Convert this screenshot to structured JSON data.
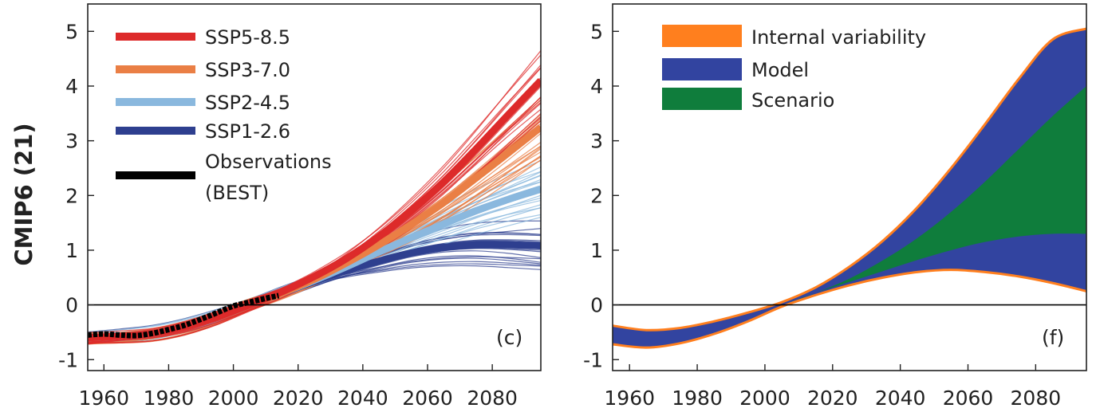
{
  "figure": {
    "row_label": "CMIP6 (21)"
  },
  "chart_data": [
    {
      "type": "line",
      "panel_label": "(c)",
      "xlim": [
        1955,
        2095
      ],
      "ylim": [
        -1.2,
        5.5
      ],
      "xticks": [
        1960,
        1980,
        2000,
        2020,
        2040,
        2060,
        2080
      ],
      "yticks": [
        -1,
        0,
        1,
        2,
        3,
        4,
        5
      ],
      "xlabel": "",
      "ylabel": "CMIP6 (21)",
      "zero_line": true,
      "legend": {
        "placement": "top-left",
        "entries": [
          {
            "label": "SSP5-8.5",
            "color": "#dd2a2a"
          },
          {
            "label": "SSP3-7.0",
            "color": "#ea7f45"
          },
          {
            "label": "SSP2-4.5",
            "color": "#8ab8de"
          },
          {
            "label": "SSP1-2.6",
            "color": "#2e3f8f"
          },
          {
            "label": "Observations",
            "label2": "(BEST)",
            "color": "#000000"
          }
        ]
      },
      "series": [
        {
          "name": "SSP5-8.5",
          "color": "#dd2a2a",
          "x": [
            1955,
            1965,
            1975,
            1985,
            1995,
            2005,
            2015,
            2025,
            2035,
            2045,
            2055,
            2065,
            2075,
            2085,
            2095
          ],
          "y": [
            -0.6,
            -0.57,
            -0.52,
            -0.4,
            -0.22,
            0.0,
            0.24,
            0.52,
            0.85,
            1.25,
            1.72,
            2.25,
            2.85,
            3.48,
            4.1
          ]
        },
        {
          "name": "SSP3-7.0",
          "color": "#ea7f45",
          "x": [
            1955,
            1965,
            1975,
            1985,
            1995,
            2005,
            2015,
            2025,
            2035,
            2045,
            2055,
            2065,
            2075,
            2085,
            2095
          ],
          "y": [
            -0.6,
            -0.57,
            -0.52,
            -0.4,
            -0.22,
            0.0,
            0.22,
            0.47,
            0.77,
            1.1,
            1.47,
            1.87,
            2.32,
            2.78,
            3.25
          ]
        },
        {
          "name": "SSP2-4.5",
          "color": "#8ab8de",
          "x": [
            1955,
            1965,
            1975,
            1985,
            1995,
            2005,
            2015,
            2025,
            2035,
            2045,
            2055,
            2065,
            2075,
            2085,
            2095
          ],
          "y": [
            -0.6,
            -0.57,
            -0.52,
            -0.4,
            -0.22,
            0.0,
            0.22,
            0.45,
            0.7,
            0.97,
            1.23,
            1.48,
            1.72,
            1.93,
            2.12
          ]
        },
        {
          "name": "SSP1-2.6",
          "color": "#2e3f8f",
          "x": [
            1955,
            1965,
            1975,
            1985,
            1995,
            2005,
            2015,
            2025,
            2035,
            2045,
            2055,
            2065,
            2075,
            2085,
            2095
          ],
          "y": [
            -0.6,
            -0.57,
            -0.52,
            -0.4,
            -0.22,
            0.0,
            0.22,
            0.43,
            0.63,
            0.8,
            0.95,
            1.05,
            1.1,
            1.1,
            1.08
          ]
        },
        {
          "name": "Observations",
          "color": "#000000",
          "x": [
            1955,
            1960,
            1965,
            1970,
            1975,
            1980,
            1985,
            1990,
            1995,
            2000,
            2005,
            2010,
            2014
          ],
          "y": [
            -0.55,
            -0.53,
            -0.55,
            -0.56,
            -0.52,
            -0.45,
            -0.37,
            -0.26,
            -0.14,
            -0.02,
            0.05,
            0.12,
            0.17
          ]
        }
      ]
    },
    {
      "type": "area",
      "panel_label": "(f)",
      "xlim": [
        1955,
        2095
      ],
      "ylim": [
        -1.2,
        5.5
      ],
      "xticks": [
        1960,
        1980,
        2000,
        2020,
        2040,
        2060,
        2080
      ],
      "yticks": [
        -1,
        0,
        1,
        2,
        3,
        4,
        5
      ],
      "zero_line": true,
      "legend": {
        "placement": "top-left",
        "entries": [
          {
            "label": "Internal variability",
            "color": "#ff7f1e"
          },
          {
            "label": "Model",
            "color": "#3244a0"
          },
          {
            "label": "Scenario",
            "color": "#0f7d3c"
          }
        ]
      },
      "x": [
        1955,
        1965,
        1975,
        1985,
        1995,
        2005,
        2015,
        2025,
        2035,
        2045,
        2055,
        2065,
        2075,
        2085,
        2095
      ],
      "upper": [
        -0.38,
        -0.46,
        -0.42,
        -0.3,
        -0.14,
        0.05,
        0.32,
        0.7,
        1.18,
        1.78,
        2.5,
        3.3,
        4.13,
        4.85,
        5.05
      ],
      "scenario_upper": [
        -0.5,
        -0.55,
        -0.5,
        -0.38,
        -0.2,
        0.0,
        0.22,
        0.48,
        0.82,
        1.22,
        1.7,
        2.25,
        2.85,
        3.45,
        4.0
      ],
      "scenario_lower": [
        -0.5,
        -0.55,
        -0.5,
        -0.38,
        -0.2,
        0.0,
        0.22,
        0.42,
        0.62,
        0.82,
        1.0,
        1.15,
        1.25,
        1.3,
        1.3
      ],
      "lower": [
        -0.72,
        -0.78,
        -0.7,
        -0.53,
        -0.3,
        -0.03,
        0.18,
        0.36,
        0.5,
        0.6,
        0.64,
        0.6,
        0.52,
        0.4,
        0.25
      ]
    }
  ]
}
